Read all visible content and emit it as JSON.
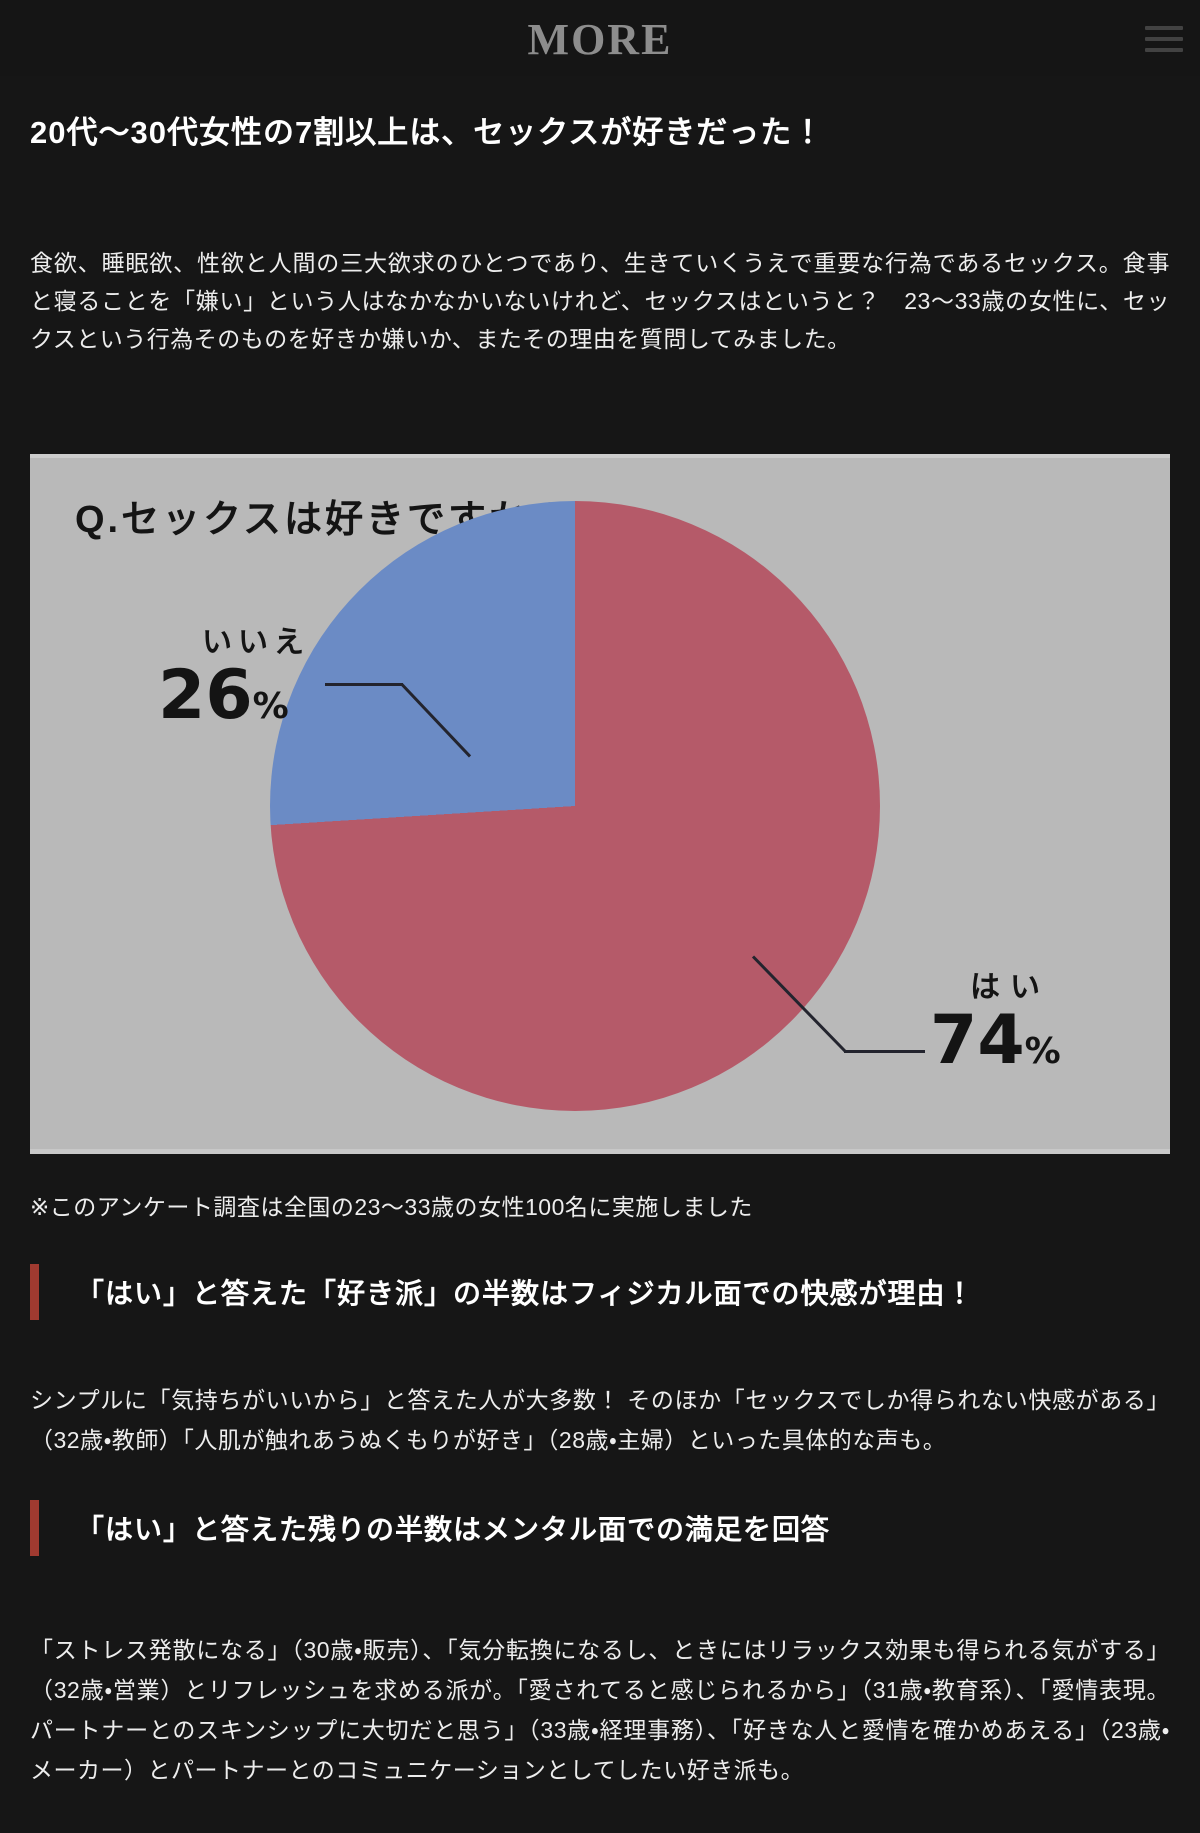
{
  "header": {
    "logo_text": "MORE"
  },
  "article": {
    "title": "20代～30代女性の7割以上は、セックスが好きだった！",
    "intro": "食欲、睡眠欲、性欲と人間の三大欲求のひとつであり、生きていくうえで重要な行為であるセックス。食事と寝ることを「嫌い」という人はなかなかいないけれど、セックスはというと？　23～33歳の女性に、セックスという行為そのものを好きか嫌いか、またその理由を質問してみました。",
    "chart_note": "※このアンケート調査は全国の23～33歳の女性100名に実施しました",
    "sections": [
      {
        "heading": "「はい」と答えた「好き派」の半数はフィジカル面での快感が理由！",
        "body": "シンプルに「気持ちがいいから」と答えた人が大多数！ そのほか「セックスでしか得られない快感がある」（32歳・教師）「人肌が触れあうぬくもりが好き」（28歳・主婦）といった具体的な声も。"
      },
      {
        "heading": "「はい」と答えた残りの半数はメンタル面での満足を回答",
        "body": "「ストレス発散になる」（30歳・販売）、「気分転換になるし、ときにはリラックス効果も得られる気がする」（32歳・営業）とリフレッシュを求める派が。「愛されてると感じられるから」（31歳・教育系）、「愛情表現。パートナーとのスキンシップに大切だと思う」（33歳・経理事務）、「好きな人と愛情を確かめあえる」（23歳・メーカー）とパートナーとのコミュニケーションとしてしたい好き派も。"
      }
    ]
  },
  "chart_data": {
    "type": "pie",
    "title": "Q.セックスは好きですか？",
    "labels": [
      "はい",
      "いいえ"
    ],
    "values": [
      74,
      26
    ],
    "value_suffix": "%",
    "colors": [
      "#b55a69",
      "#6b8bc5"
    ],
    "background": "#b9b9b9",
    "start_angle": "top (12 o'clock), はい drawn clockwise",
    "legend_position": "callout labels with leader lines",
    "annotations": [
      "いいえ 26%",
      "はい 74%"
    ]
  },
  "colors": {
    "page-bg": "#161616",
    "accent-red": "#a03a30",
    "chart-bg": "#b9b9b9",
    "leader-line": "#23242e"
  }
}
